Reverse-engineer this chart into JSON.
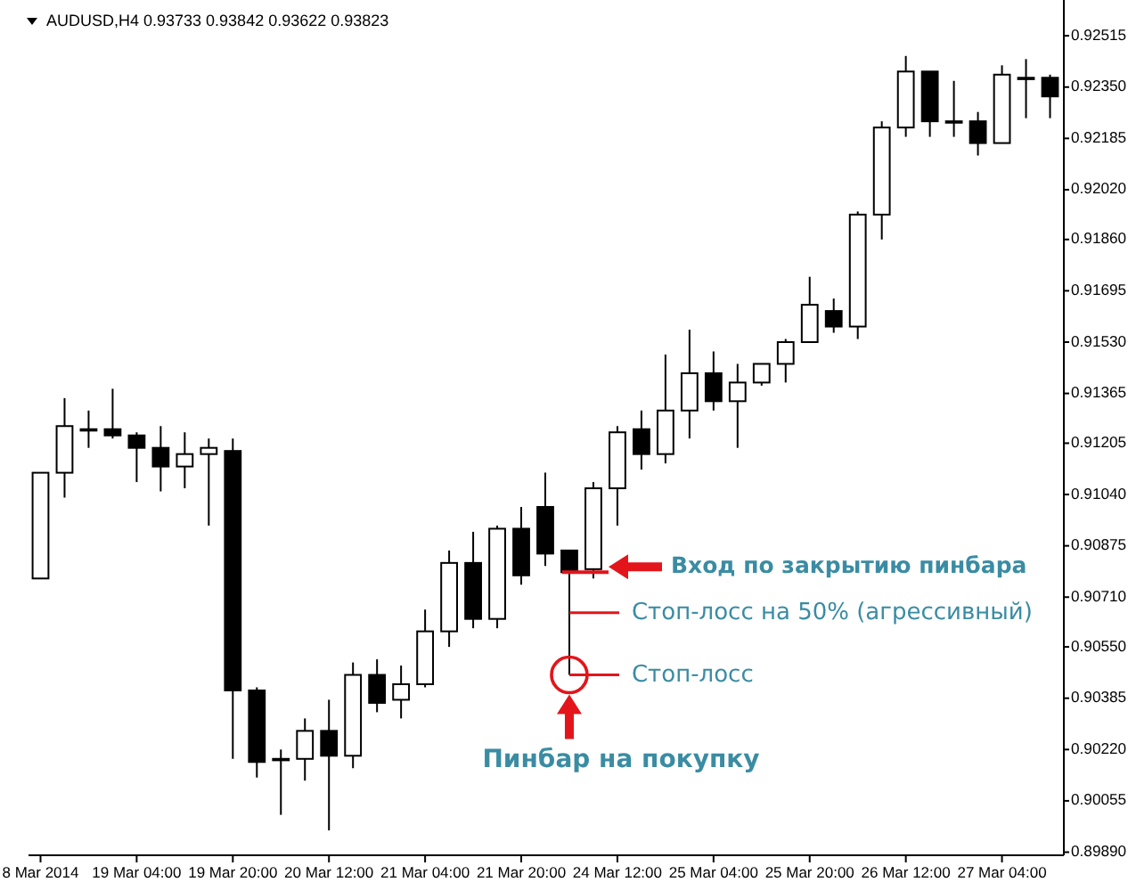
{
  "chart_data": {
    "type": "candlestick",
    "title": "AUDUSD,H4 0.93733 0.93842 0.93622 0.93823",
    "categories": [
      "8 Mar 2014",
      null,
      null,
      null,
      "19 Mar 04:00",
      null,
      null,
      null,
      "19 Mar 20:00",
      null,
      null,
      null,
      "20 Mar 12:00",
      null,
      null,
      null,
      "21 Mar 04:00",
      null,
      null,
      null,
      "21 Mar 20:00",
      null,
      null,
      null,
      "24 Mar 12:00",
      null,
      null,
      null,
      "25 Mar 04:00",
      null,
      null,
      null,
      "25 Mar 20:00",
      null,
      null,
      null,
      "26 Mar 12:00",
      null,
      null,
      null,
      "27 Mar 04:00",
      null,
      null
    ],
    "ohlc": [
      [
        0.9077,
        0.9111,
        0.9077,
        0.9111
      ],
      [
        0.9111,
        0.9135,
        0.9103,
        0.9126
      ],
      [
        0.9125,
        0.9131,
        0.9119,
        0.9125
      ],
      [
        0.9125,
        0.9138,
        0.9122,
        0.9123
      ],
      [
        0.9123,
        0.9124,
        0.9108,
        0.9119
      ],
      [
        0.9119,
        0.9126,
        0.9105,
        0.9113
      ],
      [
        0.9113,
        0.9124,
        0.9106,
        0.9117
      ],
      [
        0.9117,
        0.9122,
        0.9094,
        0.9119
      ],
      [
        0.9118,
        0.9122,
        0.9019,
        0.9041
      ],
      [
        0.9041,
        0.9042,
        0.9013,
        0.9018
      ],
      [
        0.9019,
        0.9022,
        0.9001,
        0.9019
      ],
      [
        0.9019,
        0.9032,
        0.9012,
        0.9028
      ],
      [
        0.9028,
        0.9038,
        0.8996,
        0.902
      ],
      [
        0.902,
        0.905,
        0.9016,
        0.9046
      ],
      [
        0.9046,
        0.9051,
        0.9034,
        0.9037
      ],
      [
        0.9038,
        0.9049,
        0.9032,
        0.9043
      ],
      [
        0.9043,
        0.9067,
        0.9042,
        0.906
      ],
      [
        0.906,
        0.9086,
        0.9055,
        0.9082
      ],
      [
        0.9082,
        0.9092,
        0.9061,
        0.9064
      ],
      [
        0.9064,
        0.9094,
        0.9061,
        0.9093
      ],
      [
        0.9093,
        0.91,
        0.9075,
        0.9078
      ],
      [
        0.91,
        0.9111,
        0.9081,
        0.9085
      ],
      [
        0.9086,
        0.9086,
        0.9046,
        0.9079
      ],
      [
        0.908,
        0.9108,
        0.9077,
        0.9106
      ],
      [
        0.9106,
        0.9126,
        0.9094,
        0.9124
      ],
      [
        0.9125,
        0.9131,
        0.9112,
        0.9117
      ],
      [
        0.9117,
        0.9149,
        0.9114,
        0.9131
      ],
      [
        0.9131,
        0.9157,
        0.9122,
        0.9143
      ],
      [
        0.9143,
        0.915,
        0.9131,
        0.9134
      ],
      [
        0.9134,
        0.9146,
        0.9119,
        0.914
      ],
      [
        0.914,
        0.9146,
        0.9139,
        0.9146
      ],
      [
        0.9146,
        0.9154,
        0.914,
        0.9153
      ],
      [
        0.9153,
        0.9174,
        0.9153,
        0.9165
      ],
      [
        0.9163,
        0.9167,
        0.9156,
        0.9158
      ],
      [
        0.9158,
        0.9195,
        0.9154,
        0.9194
      ],
      [
        0.9194,
        0.9224,
        0.9186,
        0.9222
      ],
      [
        0.9222,
        0.9245,
        0.9219,
        0.924
      ],
      [
        0.924,
        0.924,
        0.9219,
        0.9224
      ],
      [
        0.9224,
        0.9237,
        0.9219,
        0.9224
      ],
      [
        0.9224,
        0.9227,
        0.9213,
        0.9217
      ],
      [
        0.9217,
        0.9242,
        0.9217,
        0.9239
      ],
      [
        0.9238,
        0.9244,
        0.9225,
        0.9238
      ],
      [
        0.9238,
        0.9239,
        0.9225,
        0.9232
      ]
    ],
    "colors": [
      "#ffffff",
      "#ffffff",
      "#ffffff",
      "#000000",
      "#000000",
      "#000000",
      "#ffffff",
      "#ffffff",
      "#000000",
      "#000000",
      "#ffffff",
      "#ffffff",
      "#000000",
      "#ffffff",
      "#000000",
      "#ffffff",
      "#ffffff",
      "#ffffff",
      "#000000",
      "#ffffff",
      "#000000",
      "#000000",
      "#000000",
      "#ffffff",
      "#ffffff",
      "#000000",
      "#ffffff",
      "#ffffff",
      "#000000",
      "#ffffff",
      "#ffffff",
      "#ffffff",
      "#ffffff",
      "#000000",
      "#ffffff",
      "#ffffff",
      "#ffffff",
      "#000000",
      "#ffffff",
      "#000000",
      "#ffffff",
      "#ffffff",
      "#000000"
    ],
    "color": "#000000",
    "ylim": [
      0.8988,
      0.9263
    ],
    "yticks": [
      0.92515,
      {
        "value": 0.9235,
        "label": "0.92350"
      },
      0.92185,
      {
        "value": 0.9202,
        "label": "0.92020"
      },
      {
        "value": 0.9186,
        "label": "0.91860"
      },
      0.91695,
      {
        "value": 0.9153,
        "label": "0.91530"
      },
      0.91365,
      0.91205,
      {
        "value": 0.9104,
        "label": "0.91040"
      },
      0.90875,
      {
        "value": 0.9071,
        "label": "0.90710"
      },
      {
        "value": 0.9055,
        "label": "0.90550"
      },
      0.90385,
      {
        "value": 0.9022,
        "label": "0.90220"
      },
      0.90055,
      {
        "value": 0.8989,
        "label": "0.89890"
      }
    ],
    "annotations": [
      "Вход по закрытию пинбара",
      "Стоп-лосс на 50% (агрессивный)",
      "Стоп-лосс",
      "Пинбар на покупку"
    ]
  }
}
